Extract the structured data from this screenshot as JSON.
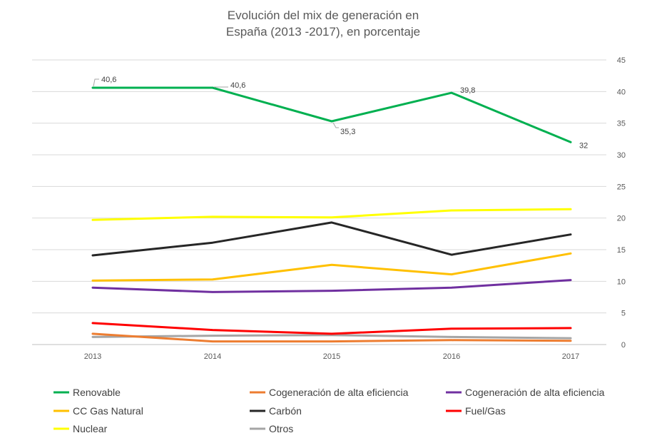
{
  "chart_data": {
    "type": "line",
    "title": [
      "Evolución del mix de generación en",
      "España (2013 -2017), en porcentaje"
    ],
    "xlabel": "",
    "ylabel": "",
    "categories": [
      "2013",
      "2014",
      "2015",
      "2016",
      "2017"
    ],
    "ylim": [
      0,
      45
    ],
    "yticks": [
      0,
      5,
      10,
      15,
      20,
      25,
      30,
      35,
      40,
      45
    ],
    "y_axis_side": "right",
    "grid": true,
    "legend_position": "bottom",
    "series": [
      {
        "name": "Renovable",
        "color": "#00b050",
        "values": [
          40.6,
          40.6,
          35.3,
          39.8,
          32
        ],
        "labels": [
          "40,6",
          "40,6",
          "35,3",
          "39,8",
          "32"
        ]
      },
      {
        "name": "Cogeneración de alta eficiencia",
        "color": "#ed7d31",
        "values": [
          1.7,
          0.5,
          0.5,
          0.7,
          0.6
        ]
      },
      {
        "name": "Cogeneración de alta eficiencia",
        "color": "#7030a0",
        "values": [
          9.0,
          8.3,
          8.5,
          9.0,
          10.2
        ]
      },
      {
        "name": "CC Gas Natural",
        "color": "#ffc000",
        "values": [
          10.1,
          10.3,
          12.6,
          11.1,
          14.4
        ]
      },
      {
        "name": "Carbón",
        "color": "#262626",
        "values": [
          14.1,
          16.1,
          19.3,
          14.2,
          17.4
        ]
      },
      {
        "name": "Fuel/Gas",
        "color": "#ff0000",
        "values": [
          3.4,
          2.3,
          1.7,
          2.5,
          2.6
        ]
      },
      {
        "name": "Nuclear",
        "color": "#ffff00",
        "values": [
          19.7,
          20.2,
          20.1,
          21.2,
          21.4
        ]
      },
      {
        "name": "Otros",
        "color": "#a5a5a5",
        "values": [
          1.2,
          1.4,
          1.5,
          1.2,
          1.0
        ]
      }
    ]
  }
}
